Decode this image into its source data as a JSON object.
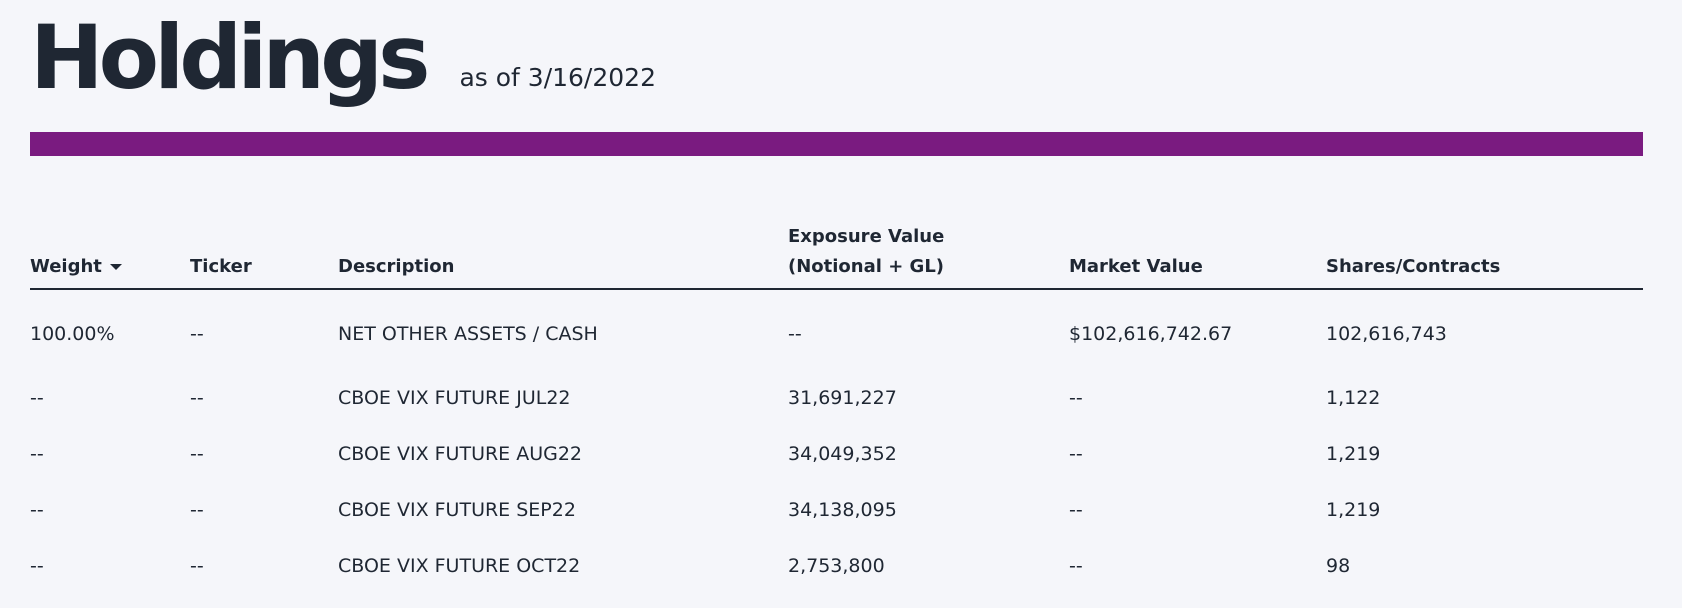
{
  "header": {
    "title": "Holdings",
    "as_of": "as of 3/16/2022"
  },
  "colors": {
    "accent": "#7a1b80",
    "text": "#1f2733",
    "background": "#f5f6fa"
  },
  "table": {
    "columns": {
      "weight": "Weight",
      "ticker": "Ticker",
      "description": "Description",
      "exposure_line1": "Exposure Value",
      "exposure_line2": "(Notional + GL)",
      "market_value": "Market Value",
      "shares": "Shares/Contracts"
    },
    "sort_icon": "caret-down-icon",
    "rows": [
      {
        "weight": "100.00%",
        "ticker": "--",
        "description": "NET OTHER ASSETS / CASH",
        "exposure": "--",
        "market_value": "$102,616,742.67",
        "shares": "102,616,743"
      },
      {
        "weight": "--",
        "ticker": "--",
        "description": "CBOE VIX FUTURE JUL22",
        "exposure": "31,691,227",
        "market_value": "--",
        "shares": "1,122"
      },
      {
        "weight": "--",
        "ticker": "--",
        "description": "CBOE VIX FUTURE AUG22",
        "exposure": "34,049,352",
        "market_value": "--",
        "shares": "1,219"
      },
      {
        "weight": "--",
        "ticker": "--",
        "description": "CBOE VIX FUTURE SEP22",
        "exposure": "34,138,095",
        "market_value": "--",
        "shares": "1,219"
      },
      {
        "weight": "--",
        "ticker": "--",
        "description": "CBOE VIX FUTURE OCT22",
        "exposure": "2,753,800",
        "market_value": "--",
        "shares": "98"
      }
    ]
  }
}
